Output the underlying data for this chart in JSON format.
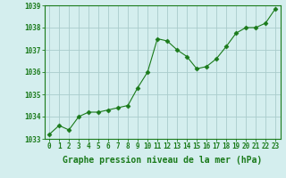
{
  "x": [
    0,
    1,
    2,
    3,
    4,
    5,
    6,
    7,
    8,
    9,
    10,
    11,
    12,
    13,
    14,
    15,
    16,
    17,
    18,
    19,
    20,
    21,
    22,
    23
  ],
  "y": [
    1033.2,
    1033.6,
    1033.4,
    1034.0,
    1034.2,
    1034.2,
    1034.3,
    1034.4,
    1034.5,
    1035.3,
    1036.0,
    1037.5,
    1037.4,
    1037.0,
    1036.7,
    1036.15,
    1036.25,
    1036.6,
    1037.15,
    1037.75,
    1038.0,
    1038.0,
    1038.2,
    1038.85
  ],
  "line_color": "#1a7a1a",
  "marker": "D",
  "marker_size": 2.5,
  "bg_color": "#d4eeee",
  "grid_color": "#aacccc",
  "xlabel": "Graphe pression niveau de la mer (hPa)",
  "xlabel_color": "#1a7a1a",
  "tick_color": "#1a7a1a",
  "ylim": [
    1033.0,
    1039.0
  ],
  "yticks": [
    1033,
    1034,
    1035,
    1036,
    1037,
    1038,
    1039
  ],
  "xlim_min": -0.5,
  "xlim_max": 23.5,
  "xticks": [
    0,
    1,
    2,
    3,
    4,
    5,
    6,
    7,
    8,
    9,
    10,
    11,
    12,
    13,
    14,
    15,
    16,
    17,
    18,
    19,
    20,
    21,
    22,
    23
  ],
  "xtick_labels": [
    "0",
    "1",
    "2",
    "3",
    "4",
    "5",
    "6",
    "7",
    "8",
    "9",
    "10",
    "11",
    "12",
    "13",
    "14",
    "15",
    "16",
    "17",
    "18",
    "19",
    "20",
    "21",
    "22",
    "23"
  ],
  "spine_color": "#1a7a1a",
  "label_fontsize": 7,
  "tick_fontsize": 5.5
}
